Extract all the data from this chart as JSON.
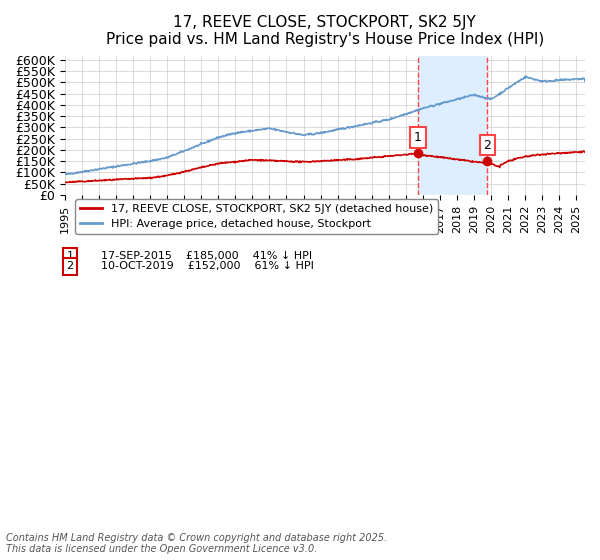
{
  "title": "17, REEVE CLOSE, STOCKPORT, SK2 5JY",
  "subtitle": "Price paid vs. HM Land Registry's House Price Index (HPI)",
  "ylabel_ticks": [
    "£0",
    "£50K",
    "£100K",
    "£150K",
    "£200K",
    "£250K",
    "£300K",
    "£350K",
    "£400K",
    "£450K",
    "£500K",
    "£550K",
    "£600K"
  ],
  "ytick_values": [
    0,
    50000,
    100000,
    150000,
    200000,
    250000,
    300000,
    350000,
    400000,
    450000,
    500000,
    550000,
    600000
  ],
  "ylim": [
    0,
    620000
  ],
  "xlim_start": 1995.0,
  "xlim_end": 2025.5,
  "sale1_date": 2015.71,
  "sale1_price": 185000,
  "sale1_label": "1",
  "sale1_text": "17-SEP-2015    £185,000    41% ↓ HPI",
  "sale2_date": 2019.77,
  "sale2_price": 152000,
  "sale2_label": "2",
  "sale2_text": "10-OCT-2019    £152,000    61% ↓ HPI",
  "shaded_region_start": 2015.71,
  "shaded_region_end": 2019.77,
  "red_line_color": "#cc0000",
  "blue_line_color": "#6699cc",
  "shaded_color": "#ddeeff",
  "grid_color": "#cccccc",
  "legend_label_red": "17, REEVE CLOSE, STOCKPORT, SK2 5JY (detached house)",
  "legend_label_blue": "HPI: Average price, detached house, Stockport",
  "footer": "Contains HM Land Registry data © Crown copyright and database right 2025.\nThis data is licensed under the Open Government Licence v3.0.",
  "background_color": "#ffffff"
}
